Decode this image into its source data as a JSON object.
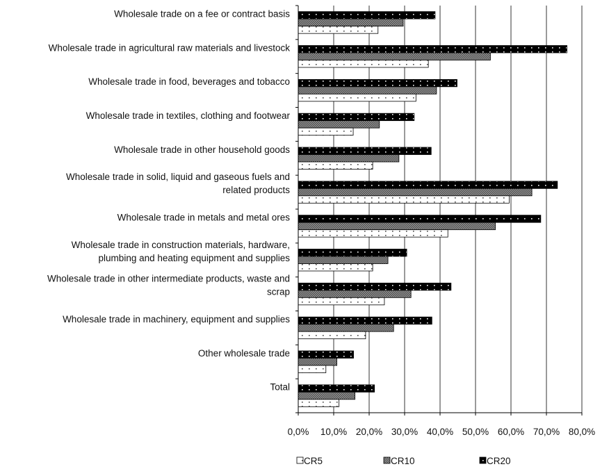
{
  "chart_data": {
    "type": "bar",
    "orientation": "horizontal",
    "categories": [
      "Wholesale trade on a fee or contract basis",
      "Wholesale trade in agricultural raw materials and livestock",
      "Wholesale trade in food, beverages and tobacco",
      "Wholesale trade in textiles, clothing and footwear",
      "Wholesale trade in other household goods",
      "Wholesale trade in solid, liquid and gaseous fuels and related products",
      "Wholesale trade in metals and metal ores",
      "Wholesale trade in construction materials, hardware, plumbing and heating equipment and supplies",
      "Wholesale trade in other intermediate products, waste and scrap",
      "Wholesale trade in machinery, equipment and supplies",
      "Other wholesale trade",
      "Total"
    ],
    "category_lines": [
      [
        "Wholesale trade on a fee or contract basis"
      ],
      [
        "Wholesale trade in agricultural raw materials and livestock"
      ],
      [
        "Wholesale trade in food, beverages and tobacco"
      ],
      [
        "Wholesale trade in textiles, clothing and footwear"
      ],
      [
        "Wholesale trade in other household goods"
      ],
      [
        "Wholesale trade in solid, liquid and gaseous fuels and",
        "related products"
      ],
      [
        "Wholesale trade in metals and metal ores"
      ],
      [
        "Wholesale trade in construction materials, hardware,",
        "plumbing and heating equipment and supplies"
      ],
      [
        "Wholesale trade in other intermediate products, waste and",
        "scrap"
      ],
      [
        "Wholesale trade in machinery, equipment and supplies"
      ],
      [
        "Other wholesale trade"
      ],
      [
        "Total"
      ]
    ],
    "series": [
      {
        "name": "CR5",
        "pattern": "dots-white",
        "values": [
          22.5,
          36.7,
          33.2,
          15.5,
          21.0,
          59.5,
          42.2,
          21.0,
          24.3,
          19.0,
          7.8,
          11.5
        ]
      },
      {
        "name": "CR10",
        "pattern": "hatch-gray",
        "values": [
          29.6,
          54.2,
          39.0,
          22.9,
          28.4,
          65.9,
          55.6,
          25.3,
          31.8,
          26.9,
          10.9,
          16.0
        ]
      },
      {
        "name": "CR20",
        "pattern": "dots-black",
        "values": [
          38.6,
          75.8,
          44.8,
          32.7,
          37.5,
          73.1,
          68.4,
          30.6,
          43.1,
          37.7,
          15.6,
          21.5
        ]
      }
    ],
    "xlim": [
      0,
      80
    ],
    "xticks": [
      "0,0%",
      "10,0%",
      "20,0%",
      "30,0%",
      "40,0%",
      "50,0%",
      "60,0%",
      "70,0%",
      "80,0%"
    ],
    "grid": "vertical",
    "legend": {
      "position": "bottom",
      "entries": [
        "CR5",
        "CR10",
        "CR20"
      ]
    }
  }
}
